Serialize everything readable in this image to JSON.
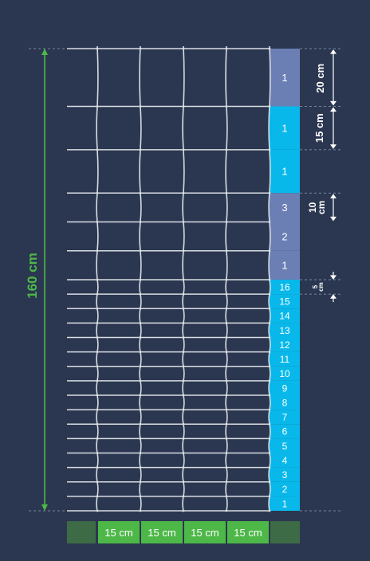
{
  "colors": {
    "background": "#2b3750",
    "wire": "#d9dde3",
    "gray_blue": "#6b7fb5",
    "cyan": "#08b8ea",
    "green": "#4db848",
    "dark_green": "#3d6b45",
    "white": "#ffffff",
    "guide": "#8fa0b8"
  },
  "total_height": {
    "label": "160 cm"
  },
  "width_spacing": {
    "labels": [
      "15 cm",
      "15 cm",
      "15 cm",
      "15 cm"
    ]
  },
  "zones": [
    {
      "count": 1,
      "spacing_cm": 20,
      "color": "gray_blue",
      "dimension_label": "20 cm"
    },
    {
      "count": 1,
      "spacing_cm": 15,
      "color": "cyan",
      "dimension_label": "15 cm"
    },
    {
      "count": 1,
      "spacing_cm": 15,
      "color": "cyan",
      "dimension_label": ""
    },
    {
      "count": 3,
      "spacing_cm": 10,
      "color": "gray_blue",
      "dimension_label": "10 cm"
    },
    {
      "count": 16,
      "spacing_cm": 5,
      "color": "cyan",
      "dimension_label": "5 cm"
    }
  ]
}
